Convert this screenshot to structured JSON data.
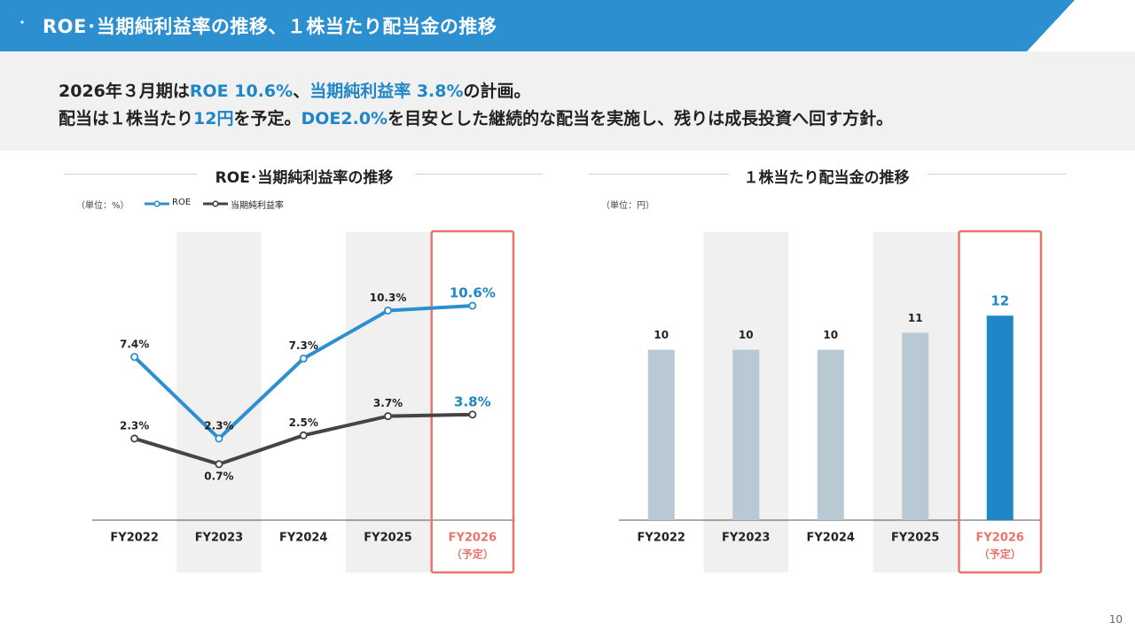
{
  "page": {
    "title": "ROE･当期純利益率の推移、１株当たり配当金の推移",
    "page_number": "10",
    "colors": {
      "header_blue": "#2c8fd0",
      "accent_blue": "#1f86c8",
      "dark_line": "#444444",
      "plan_red": "#e8746a",
      "bar_gray": "#b8c9d3"
    },
    "icons": [
      "compass-star-icon"
    ]
  },
  "summary": {
    "line1": {
      "p1": "2026年３月期は",
      "h1": "ROE 10.6%",
      "p2": "、",
      "h2": "当期純利益率 3.8%",
      "p3": "の計画。"
    },
    "line2": {
      "p1": "配当は１株当たり",
      "h1": "12円",
      "p2": "を予定。",
      "h2": "DOE2.0%",
      "p3": "を目安とした継続的な配当を実施し、残りは成長投資へ回す方針。"
    }
  },
  "chart_data": [
    {
      "type": "line",
      "title": "ROE･当期純利益率の推移",
      "unit_label": "（単位：%）",
      "categories": [
        "FY2022",
        "FY2023",
        "FY2024",
        "FY2025",
        "FY2026"
      ],
      "category_notes": [
        "",
        "",
        "",
        "",
        "（予定）"
      ],
      "series": [
        {
          "name": "ROE",
          "values": [
            7.4,
            2.3,
            7.3,
            10.3,
            10.6
          ],
          "labels": [
            "7.4%",
            "2.3%",
            "7.3%",
            "10.3%",
            "10.6%"
          ],
          "color": "#2c8fd0"
        },
        {
          "name": "当期純利益率",
          "values": [
            2.3,
            0.7,
            2.5,
            3.7,
            3.8
          ],
          "labels": [
            "2.3%",
            "0.7%",
            "2.5%",
            "3.7%",
            "3.8%"
          ],
          "color": "#444444"
        }
      ],
      "ylim": [
        -2.8,
        15.2
      ],
      "shaded_categories": [
        "FY2023",
        "FY2025"
      ],
      "highlighted_category": "FY2026",
      "legend_position": "top-left",
      "grid": false
    },
    {
      "type": "bar",
      "title": "１株当たり配当金の推移",
      "unit_label": "（単位：円）",
      "categories": [
        "FY2022",
        "FY2023",
        "FY2024",
        "FY2025",
        "FY2026"
      ],
      "category_notes": [
        "",
        "",
        "",
        "",
        "（予定）"
      ],
      "values": [
        10,
        10,
        10,
        11,
        12
      ],
      "labels": [
        "10",
        "10",
        "10",
        "11",
        "12"
      ],
      "bar_colors": [
        "#b8c9d3",
        "#b8c9d3",
        "#b8c9d3",
        "#b8c9d3",
        "#1f86c8"
      ],
      "ylim": [
        0,
        16.9
      ],
      "shaded_categories": [
        "FY2023",
        "FY2025"
      ],
      "highlighted_category": "FY2026",
      "grid": false
    }
  ]
}
